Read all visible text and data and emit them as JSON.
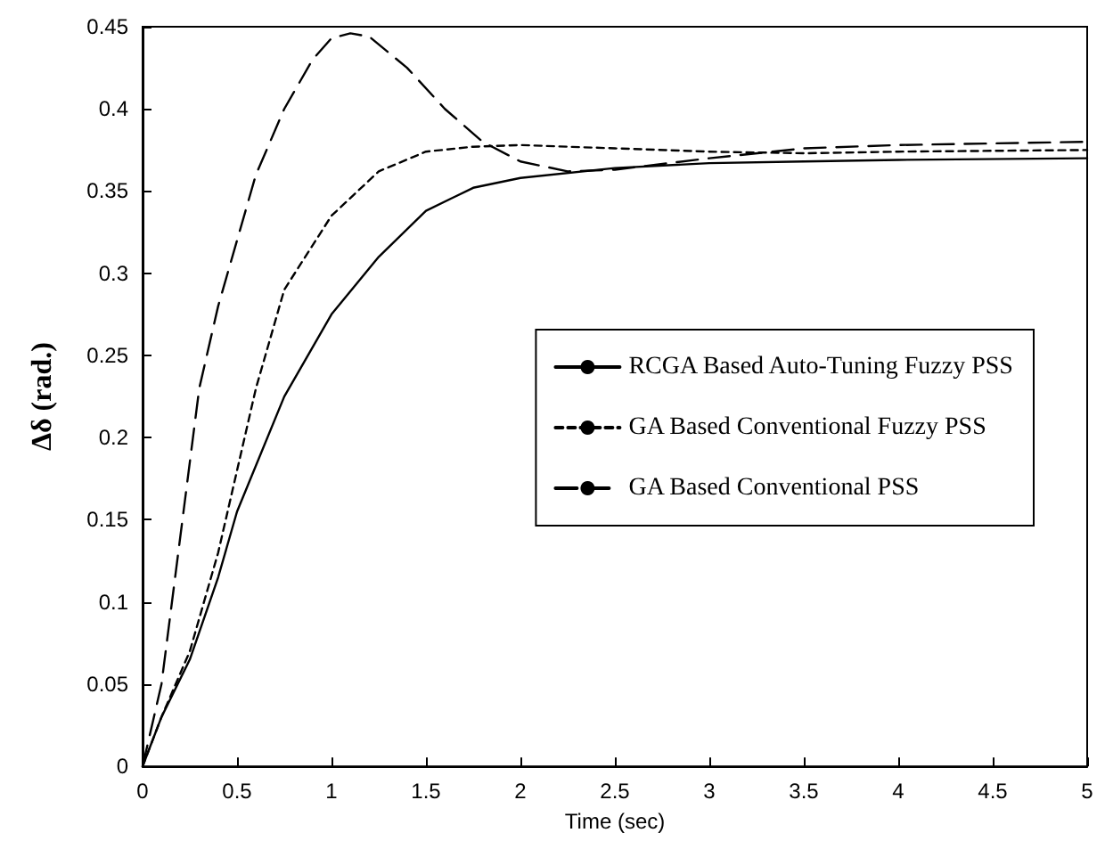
{
  "chart_data": {
    "type": "line",
    "xlabel": "Time (sec)",
    "ylabel": "Δδ (rad.)",
    "xlim": [
      0,
      5
    ],
    "xticks": [
      0,
      0.5,
      1,
      1.5,
      2,
      2.5,
      3,
      3.5,
      4,
      4.5,
      5
    ],
    "ylim": [
      0,
      0.45
    ],
    "yticks": [
      0,
      0.05,
      0.1,
      0.15,
      0.2,
      0.25,
      0.3,
      0.35,
      0.4,
      0.45
    ],
    "grid": false,
    "legend": "right",
    "marker": "none",
    "series": [
      {
        "name": "RCGA Based Auto-Tuning Fuzzy PSS",
        "color": "#000000",
        "line_style": "solid",
        "x": [
          0,
          0.1,
          0.25,
          0.4,
          0.5,
          0.75,
          1.0,
          1.25,
          1.5,
          1.75,
          2.0,
          2.5,
          3,
          3.5,
          4,
          5
        ],
        "values": [
          0,
          0.03,
          0.065,
          0.115,
          0.155,
          0.225,
          0.275,
          0.31,
          0.338,
          0.352,
          0.358,
          0.364,
          0.367,
          0.368,
          0.369,
          0.37
        ]
      },
      {
        "name": "GA Based Conventional Fuzzy PSS",
        "color": "#000000",
        "line_style": "dotted",
        "x": [
          0,
          0.1,
          0.25,
          0.4,
          0.5,
          0.6,
          0.75,
          1.0,
          1.25,
          1.5,
          1.75,
          2.0,
          2.5,
          3,
          3.5,
          4,
          5
        ],
        "values": [
          0,
          0.03,
          0.07,
          0.13,
          0.18,
          0.23,
          0.29,
          0.335,
          0.362,
          0.374,
          0.377,
          0.378,
          0.376,
          0.374,
          0.373,
          0.374,
          0.375
        ]
      },
      {
        "name": "GA Based Conventional PSS",
        "color": "#000000",
        "line_style": "dashed",
        "x": [
          0,
          0.1,
          0.2,
          0.3,
          0.4,
          0.5,
          0.6,
          0.75,
          0.9,
          1.0,
          1.1,
          1.2,
          1.4,
          1.6,
          1.8,
          2.0,
          2.25,
          2.5,
          3,
          3.5,
          4,
          5
        ],
        "values": [
          0,
          0.05,
          0.14,
          0.23,
          0.28,
          0.32,
          0.36,
          0.4,
          0.43,
          0.443,
          0.446,
          0.444,
          0.425,
          0.4,
          0.38,
          0.368,
          0.362,
          0.363,
          0.37,
          0.376,
          0.378,
          0.38
        ]
      }
    ]
  }
}
